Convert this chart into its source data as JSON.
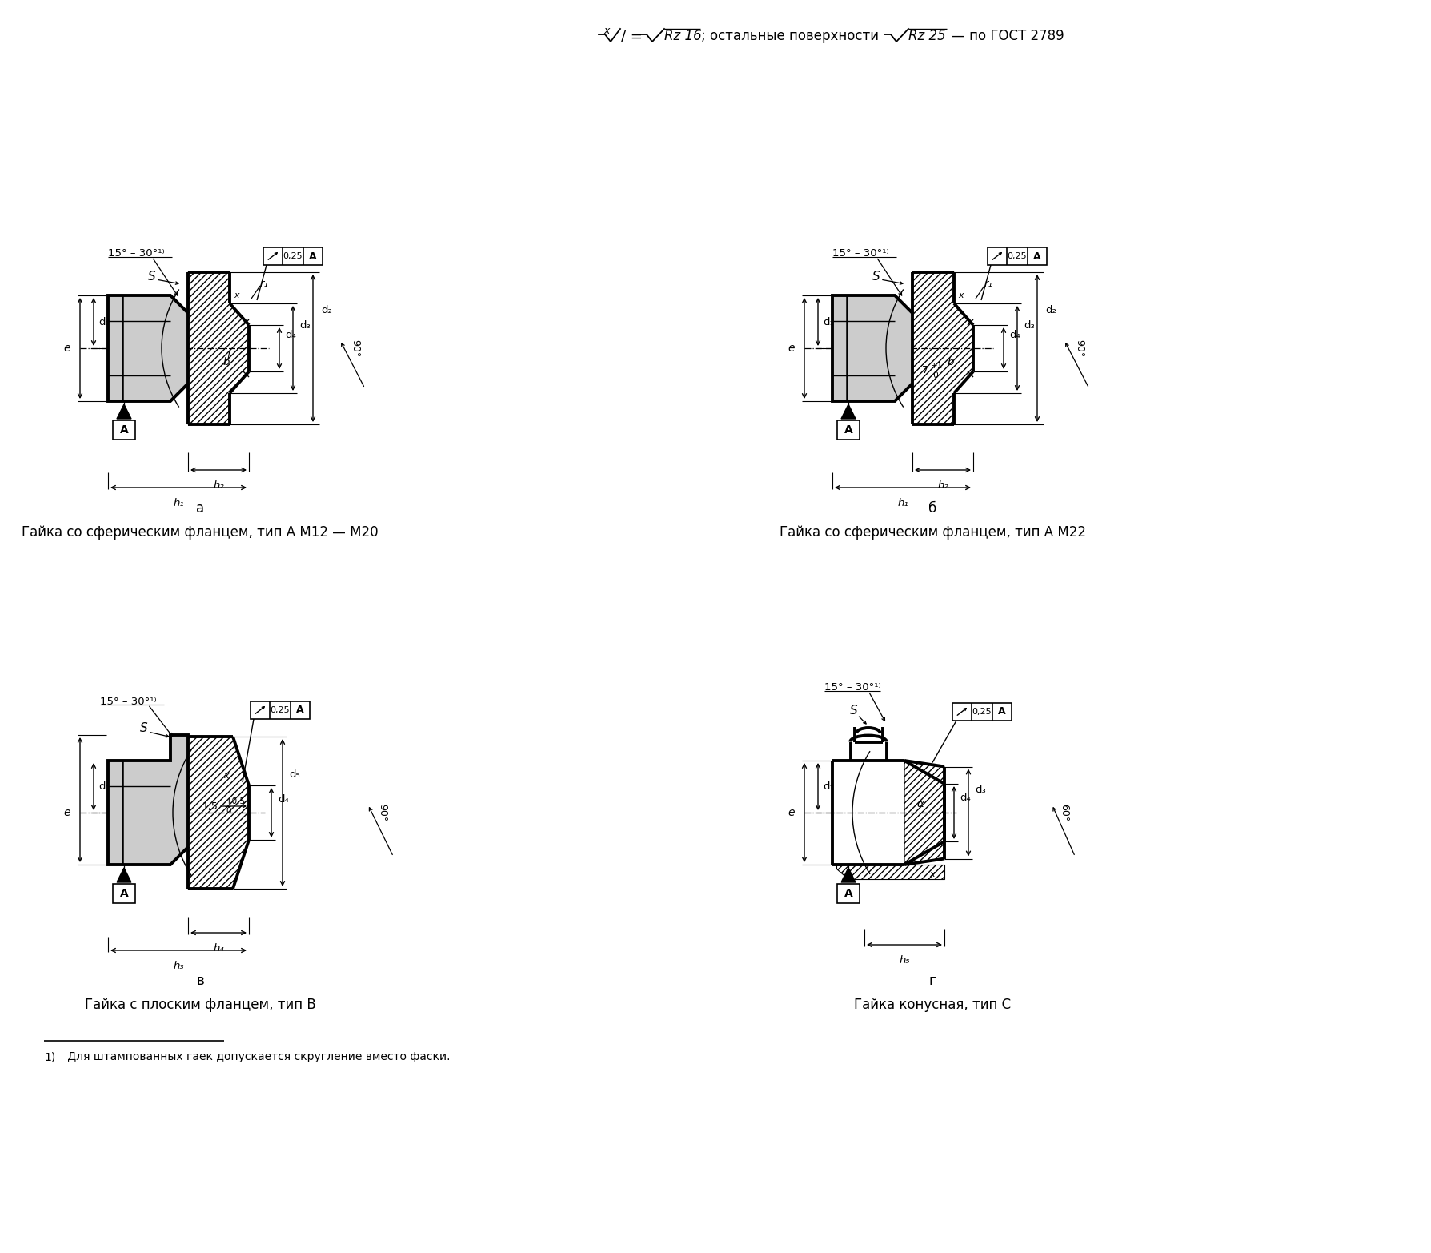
{
  "bg": "#ffffff",
  "lc": "#000000",
  "caption_a": "Гайка со сферическим фланцем, тип А М12 — М20",
  "caption_b": "Гайка со сферическим фланцем, тип А М22",
  "caption_v": "Гайка с плоским фланцем, тип В",
  "caption_g": "Гайка конусная, тип С",
  "label_a": "а",
  "label_b": "б",
  "label_v": "в",
  "label_g": "г",
  "footnote_num": "1)",
  "footnote_text": " Для штампованных гаек допускается скругление вместо фаски.",
  "title1": "x",
  "title2": "/ = ",
  "title3": "Rz 16",
  "title4": "; остальные поверхности ",
  "title5": "Rz 25",
  "title6": " — по ГОСТ 2789"
}
